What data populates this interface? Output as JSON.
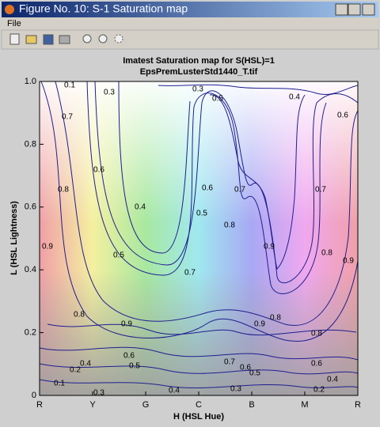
{
  "window": {
    "title": "Figure No. 10: S-1 Saturation map"
  },
  "menu": [
    "File"
  ],
  "chart_data": {
    "type": "contour",
    "title": "Imatest Saturation map for S(HSL)=1",
    "subtitle": "EpsPremLusterStd1440_T.tif",
    "x_label": "H (HSL Hue)",
    "y_label": "L (HSL Lightness)",
    "categories": [
      "R",
      "Y",
      "G",
      "C",
      "B",
      "M",
      "R"
    ],
    "ylim": [
      0,
      1
    ],
    "yticks": [
      0,
      0.2,
      0.4,
      0.6,
      0.8,
      {
        "value": 1,
        "label": "1.0"
      }
    ],
    "line_color": "#1f1f8f",
    "contour_labels": [
      0.1,
      0.3,
      0.3,
      0.4,
      0.5,
      0.6,
      0.7,
      0.8,
      0.9,
      0.6,
      0.4,
      0.5,
      0.6,
      0.7,
      0.8,
      0.9,
      0.7,
      0.8,
      0.9,
      0.5,
      0.7,
      0.8,
      0.9,
      0.6,
      0.5,
      0.4,
      0.2,
      0.1,
      0.3,
      0.4,
      0.3,
      0.9,
      0.8,
      0.7,
      0.6,
      0.5,
      0.8,
      0.6,
      0.4,
      0.2
    ]
  }
}
